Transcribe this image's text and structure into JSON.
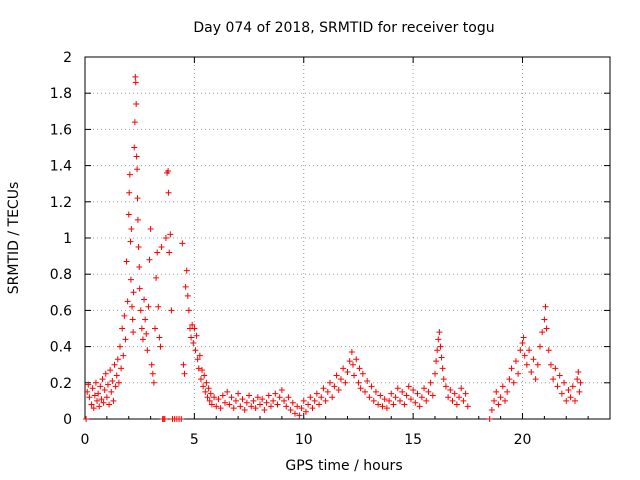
{
  "chart_data": {
    "type": "scatter",
    "title": "Day 074 of 2018, SRMTID for receiver togu",
    "xlabel": "GPS time / hours",
    "ylabel": "SRMTID / TECUs",
    "xlim": [
      0,
      24
    ],
    "ylim": [
      0,
      2
    ],
    "xticks": [
      0,
      5,
      10,
      15,
      20
    ],
    "yticks": [
      0,
      0.2,
      0.4,
      0.6,
      0.8,
      1,
      1.2,
      1.4,
      1.6,
      1.8,
      2
    ],
    "xtick_labels": [
      "0",
      "5",
      "10",
      "15",
      "20"
    ],
    "ytick_labels": [
      "0",
      "0.2",
      "0.4",
      "0.6",
      "0.8",
      "1",
      "1.2",
      "1.4",
      "1.6",
      "1.8",
      "2"
    ],
    "grid": true,
    "marker": "+",
    "color": "#ff0000",
    "series": [
      {
        "name": "SRMTID",
        "points": [
          [
            0.05,
            0.0
          ],
          [
            0.1,
            0.15
          ],
          [
            0.15,
            0.19
          ],
          [
            0.2,
            0.12
          ],
          [
            0.3,
            0.08
          ],
          [
            0.35,
            0.17
          ],
          [
            0.4,
            0.06
          ],
          [
            0.45,
            0.13
          ],
          [
            0.5,
            0.2
          ],
          [
            0.55,
            0.1
          ],
          [
            0.6,
            0.14
          ],
          [
            0.65,
            0.07
          ],
          [
            0.7,
            0.18
          ],
          [
            0.75,
            0.11
          ],
          [
            0.8,
            0.22
          ],
          [
            0.85,
            0.09
          ],
          [
            0.9,
            0.16
          ],
          [
            0.95,
            0.25
          ],
          [
            1.0,
            0.12
          ],
          [
            1.05,
            0.19
          ],
          [
            1.1,
            0.08
          ],
          [
            1.15,
            0.27
          ],
          [
            1.2,
            0.15
          ],
          [
            1.25,
            0.21
          ],
          [
            1.3,
            0.1
          ],
          [
            1.35,
            0.3
          ],
          [
            1.4,
            0.18
          ],
          [
            1.45,
            0.24
          ],
          [
            1.5,
            0.33
          ],
          [
            1.55,
            0.2
          ],
          [
            1.6,
            0.4
          ],
          [
            1.65,
            0.28
          ],
          [
            1.7,
            0.5
          ],
          [
            1.75,
            0.35
          ],
          [
            1.8,
            0.57
          ],
          [
            1.85,
            0.44
          ],
          [
            1.9,
            0.87
          ],
          [
            1.95,
            0.65
          ],
          [
            2.0,
            1.13
          ],
          [
            2.02,
            1.25
          ],
          [
            2.05,
            1.35
          ],
          [
            2.08,
            0.98
          ],
          [
            2.1,
            0.77
          ],
          [
            2.12,
            1.05
          ],
          [
            2.15,
            0.62
          ],
          [
            2.18,
            0.55
          ],
          [
            2.2,
            0.48
          ],
          [
            2.22,
            0.7
          ],
          [
            2.25,
            1.5
          ],
          [
            2.28,
            1.64
          ],
          [
            2.3,
            1.89
          ],
          [
            2.32,
            1.86
          ],
          [
            2.34,
            1.74
          ],
          [
            2.36,
            1.45
          ],
          [
            2.38,
            1.38
          ],
          [
            2.4,
            1.22
          ],
          [
            2.42,
            1.1
          ],
          [
            2.45,
            0.95
          ],
          [
            2.48,
            0.84
          ],
          [
            2.5,
            0.72
          ],
          [
            2.55,
            0.6
          ],
          [
            2.6,
            0.5
          ],
          [
            2.65,
            0.44
          ],
          [
            2.7,
            0.66
          ],
          [
            2.75,
            0.55
          ],
          [
            2.8,
            0.47
          ],
          [
            2.85,
            0.38
          ],
          [
            2.9,
            0.62
          ],
          [
            2.95,
            0.88
          ],
          [
            3.0,
            1.05
          ],
          [
            3.05,
            0.3
          ],
          [
            3.1,
            0.25
          ],
          [
            3.15,
            0.2
          ],
          [
            3.2,
            0.5
          ],
          [
            3.25,
            0.78
          ],
          [
            3.3,
            0.92
          ],
          [
            3.35,
            0.62
          ],
          [
            3.4,
            0.45
          ],
          [
            3.45,
            0.4
          ],
          [
            3.5,
            0.95
          ],
          [
            3.55,
            0.0
          ],
          [
            3.6,
            0.0
          ],
          [
            3.65,
            0.0
          ],
          [
            3.7,
            1.0
          ],
          [
            3.75,
            1.36
          ],
          [
            3.8,
            1.37
          ],
          [
            3.82,
            1.25
          ],
          [
            3.85,
            0.92
          ],
          [
            3.9,
            1.02
          ],
          [
            3.95,
            0.6
          ],
          [
            4.0,
            0.0
          ],
          [
            4.1,
            0.0
          ],
          [
            4.2,
            0.0
          ],
          [
            4.3,
            0.0
          ],
          [
            4.4,
            0.0
          ],
          [
            4.45,
            0.97
          ],
          [
            4.5,
            0.3
          ],
          [
            4.55,
            0.25
          ],
          [
            4.6,
            0.73
          ],
          [
            4.65,
            0.82
          ],
          [
            4.7,
            0.68
          ],
          [
            4.75,
            0.6
          ],
          [
            4.8,
            0.5
          ],
          [
            4.85,
            0.45
          ],
          [
            4.9,
            0.52
          ],
          [
            4.95,
            0.42
          ],
          [
            5.0,
            0.5
          ],
          [
            5.05,
            0.38
          ],
          [
            5.1,
            0.46
          ],
          [
            5.15,
            0.33
          ],
          [
            5.2,
            0.28
          ],
          [
            5.25,
            0.35
          ],
          [
            5.3,
            0.22
          ],
          [
            5.35,
            0.27
          ],
          [
            5.4,
            0.18
          ],
          [
            5.45,
            0.24
          ],
          [
            5.5,
            0.15
          ],
          [
            5.55,
            0.2
          ],
          [
            5.6,
            0.12
          ],
          [
            5.65,
            0.17
          ],
          [
            5.7,
            0.1
          ],
          [
            5.75,
            0.14
          ],
          [
            5.8,
            0.08
          ],
          [
            5.9,
            0.12
          ],
          [
            6.0,
            0.07
          ],
          [
            6.1,
            0.11
          ],
          [
            6.2,
            0.06
          ],
          [
            6.3,
            0.13
          ],
          [
            6.4,
            0.09
          ],
          [
            6.5,
            0.15
          ],
          [
            6.6,
            0.08
          ],
          [
            6.7,
            0.12
          ],
          [
            6.8,
            0.06
          ],
          [
            6.9,
            0.1
          ],
          [
            7.0,
            0.14
          ],
          [
            7.1,
            0.07
          ],
          [
            7.2,
            0.11
          ],
          [
            7.3,
            0.05
          ],
          [
            7.4,
            0.09
          ],
          [
            7.5,
            0.13
          ],
          [
            7.6,
            0.07
          ],
          [
            7.7,
            0.1
          ],
          [
            7.8,
            0.06
          ],
          [
            7.9,
            0.12
          ],
          [
            8.0,
            0.08
          ],
          [
            8.1,
            0.11
          ],
          [
            8.2,
            0.05
          ],
          [
            8.3,
            0.09
          ],
          [
            8.4,
            0.13
          ],
          [
            8.5,
            0.07
          ],
          [
            8.6,
            0.1
          ],
          [
            8.7,
            0.14
          ],
          [
            8.8,
            0.08
          ],
          [
            8.9,
            0.12
          ],
          [
            9.0,
            0.16
          ],
          [
            9.1,
            0.1
          ],
          [
            9.2,
            0.07
          ],
          [
            9.3,
            0.12
          ],
          [
            9.4,
            0.05
          ],
          [
            9.5,
            0.09
          ],
          [
            9.6,
            0.03
          ],
          [
            9.7,
            0.07
          ],
          [
            9.8,
            0.02
          ],
          [
            9.9,
            0.06
          ],
          [
            10.0,
            0.1
          ],
          [
            10.1,
            0.04
          ],
          [
            10.2,
            0.08
          ],
          [
            10.3,
            0.12
          ],
          [
            10.4,
            0.06
          ],
          [
            10.5,
            0.1
          ],
          [
            10.6,
            0.14
          ],
          [
            10.7,
            0.08
          ],
          [
            10.8,
            0.12
          ],
          [
            10.9,
            0.17
          ],
          [
            11.0,
            0.1
          ],
          [
            11.1,
            0.15
          ],
          [
            11.2,
            0.2
          ],
          [
            11.3,
            0.12
          ],
          [
            11.4,
            0.18
          ],
          [
            11.5,
            0.24
          ],
          [
            11.6,
            0.16
          ],
          [
            11.7,
            0.22
          ],
          [
            11.8,
            0.28
          ],
          [
            11.9,
            0.2
          ],
          [
            12.0,
            0.26
          ],
          [
            12.1,
            0.32
          ],
          [
            12.2,
            0.37
          ],
          [
            12.25,
            0.3
          ],
          [
            12.3,
            0.24
          ],
          [
            12.4,
            0.33
          ],
          [
            12.5,
            0.2
          ],
          [
            12.55,
            0.28
          ],
          [
            12.6,
            0.17
          ],
          [
            12.7,
            0.25
          ],
          [
            12.8,
            0.15
          ],
          [
            12.9,
            0.21
          ],
          [
            13.0,
            0.12
          ],
          [
            13.1,
            0.18
          ],
          [
            13.2,
            0.1
          ],
          [
            13.3,
            0.15
          ],
          [
            13.4,
            0.08
          ],
          [
            13.5,
            0.13
          ],
          [
            13.6,
            0.07
          ],
          [
            13.7,
            0.11
          ],
          [
            13.8,
            0.06
          ],
          [
            13.9,
            0.1
          ],
          [
            14.0,
            0.14
          ],
          [
            14.1,
            0.08
          ],
          [
            14.2,
            0.12
          ],
          [
            14.3,
            0.17
          ],
          [
            14.4,
            0.1
          ],
          [
            14.5,
            0.15
          ],
          [
            14.6,
            0.08
          ],
          [
            14.7,
            0.13
          ],
          [
            14.8,
            0.18
          ],
          [
            14.9,
            0.11
          ],
          [
            15.0,
            0.16
          ],
          [
            15.1,
            0.09
          ],
          [
            15.2,
            0.14
          ],
          [
            15.3,
            0.07
          ],
          [
            15.4,
            0.12
          ],
          [
            15.5,
            0.17
          ],
          [
            15.6,
            0.1
          ],
          [
            15.7,
            0.15
          ],
          [
            15.8,
            0.2
          ],
          [
            15.9,
            0.13
          ],
          [
            16.0,
            0.25
          ],
          [
            16.05,
            0.32
          ],
          [
            16.1,
            0.38
          ],
          [
            16.15,
            0.44
          ],
          [
            16.2,
            0.48
          ],
          [
            16.25,
            0.4
          ],
          [
            16.3,
            0.34
          ],
          [
            16.35,
            0.28
          ],
          [
            16.4,
            0.22
          ],
          [
            16.5,
            0.18
          ],
          [
            16.6,
            0.12
          ],
          [
            16.7,
            0.16
          ],
          [
            16.8,
            0.1
          ],
          [
            16.9,
            0.14
          ],
          [
            17.0,
            0.08
          ],
          [
            17.1,
            0.12
          ],
          [
            17.2,
            0.17
          ],
          [
            17.3,
            0.1
          ],
          [
            17.4,
            0.14
          ],
          [
            17.5,
            0.07
          ],
          [
            18.5,
            0.0
          ],
          [
            18.6,
            0.05
          ],
          [
            18.7,
            0.1
          ],
          [
            18.8,
            0.15
          ],
          [
            18.9,
            0.08
          ],
          [
            19.0,
            0.12
          ],
          [
            19.1,
            0.18
          ],
          [
            19.2,
            0.1
          ],
          [
            19.3,
            0.15
          ],
          [
            19.4,
            0.22
          ],
          [
            19.5,
            0.28
          ],
          [
            19.6,
            0.2
          ],
          [
            19.7,
            0.32
          ],
          [
            19.8,
            0.25
          ],
          [
            19.9,
            0.38
          ],
          [
            20.0,
            0.42
          ],
          [
            20.05,
            0.45
          ],
          [
            20.1,
            0.35
          ],
          [
            20.2,
            0.3
          ],
          [
            20.3,
            0.38
          ],
          [
            20.4,
            0.26
          ],
          [
            20.5,
            0.33
          ],
          [
            20.6,
            0.22
          ],
          [
            20.7,
            0.3
          ],
          [
            20.8,
            0.4
          ],
          [
            20.9,
            0.48
          ],
          [
            21.0,
            0.55
          ],
          [
            21.05,
            0.62
          ],
          [
            21.1,
            0.5
          ],
          [
            21.2,
            0.38
          ],
          [
            21.3,
            0.3
          ],
          [
            21.4,
            0.22
          ],
          [
            21.5,
            0.28
          ],
          [
            21.6,
            0.18
          ],
          [
            21.7,
            0.24
          ],
          [
            21.8,
            0.14
          ],
          [
            21.9,
            0.2
          ],
          [
            22.0,
            0.1
          ],
          [
            22.1,
            0.16
          ],
          [
            22.2,
            0.12
          ],
          [
            22.3,
            0.18
          ],
          [
            22.4,
            0.1
          ],
          [
            22.5,
            0.22
          ],
          [
            22.55,
            0.26
          ],
          [
            22.6,
            0.15
          ],
          [
            22.65,
            0.2
          ]
        ]
      }
    ]
  }
}
